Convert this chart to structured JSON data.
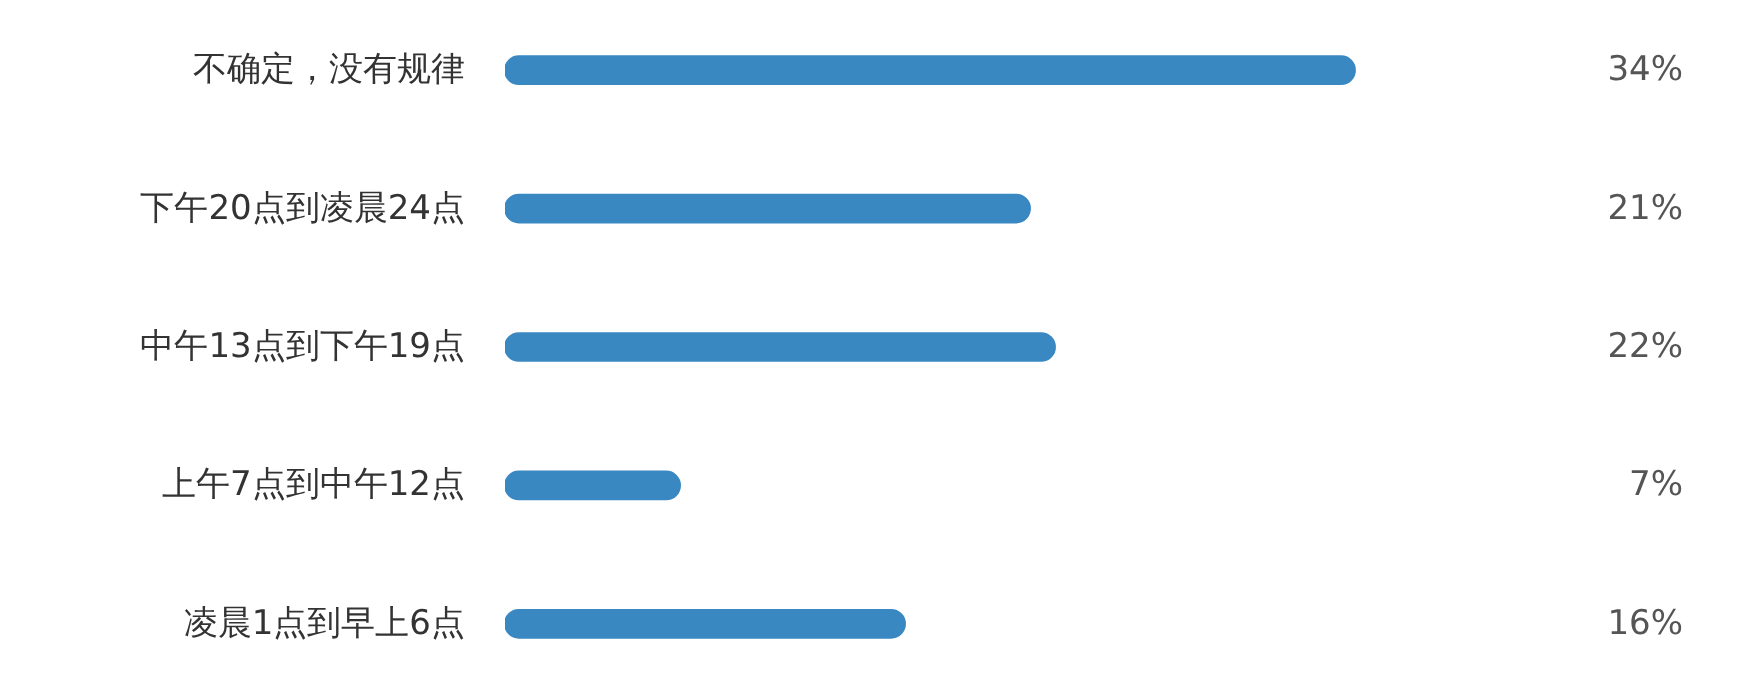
{
  "chart_data": {
    "type": "bar",
    "orientation": "horizontal",
    "categories": [
      "不确定，没有规律",
      "下午20点到凌晨24点",
      "中午13点到下午19点",
      "上午7点到中午12点",
      "凌晨1点到早上6点"
    ],
    "values": [
      34,
      21,
      22,
      7,
      16
    ],
    "value_labels": [
      "34%",
      "21%",
      "22%",
      "7%",
      "16%"
    ],
    "color": "#3a88c2",
    "tick_labels": "y"
  }
}
